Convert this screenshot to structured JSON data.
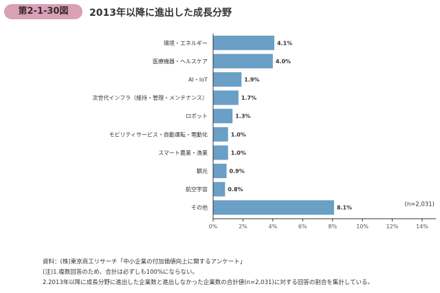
{
  "header": {
    "badge": "第2-1-30図",
    "title": "2013年以降に進出した成長分野"
  },
  "chart_data": {
    "type": "bar",
    "orientation": "horizontal",
    "categories": [
      "環境・エネルギー",
      "医療機器・ヘルスケア",
      "AI・IoT",
      "次世代インフラ（維持・管理・メンテナンス）",
      "ロボット",
      "モビリティサービス・自動運転・電動化",
      "スマート農業・漁業",
      "観光",
      "航空宇宙",
      "その他"
    ],
    "values": [
      4.1,
      4.0,
      1.9,
      1.7,
      1.3,
      1.0,
      1.0,
      0.9,
      0.8,
      8.1
    ],
    "data_labels": [
      "4.1%",
      "4.0%",
      "1.9%",
      "1.7%",
      "1.3%",
      "1.0%",
      "1.0%",
      "0.9%",
      "0.8%",
      "8.1%"
    ],
    "xlim": [
      0,
      14
    ],
    "x_ticks": [
      "0%",
      "2%",
      "4%",
      "6%",
      "8%",
      "10%",
      "12%",
      "14%"
    ],
    "annotation": "(n=2,031)",
    "bar_color": "#6a9fc6",
    "grid": false
  },
  "notes": [
    "資料：(株)東京商工リサーチ「中小企業の付加価値向上に関するアンケート」",
    "(注)1.複数回答のため、合計は必ずしも100%にならない。",
    "2.2013年以降に成長分野に進出した企業数と進出しなかった企業数の合計値(n=2,031)に対する回答の割合を集計している。"
  ]
}
